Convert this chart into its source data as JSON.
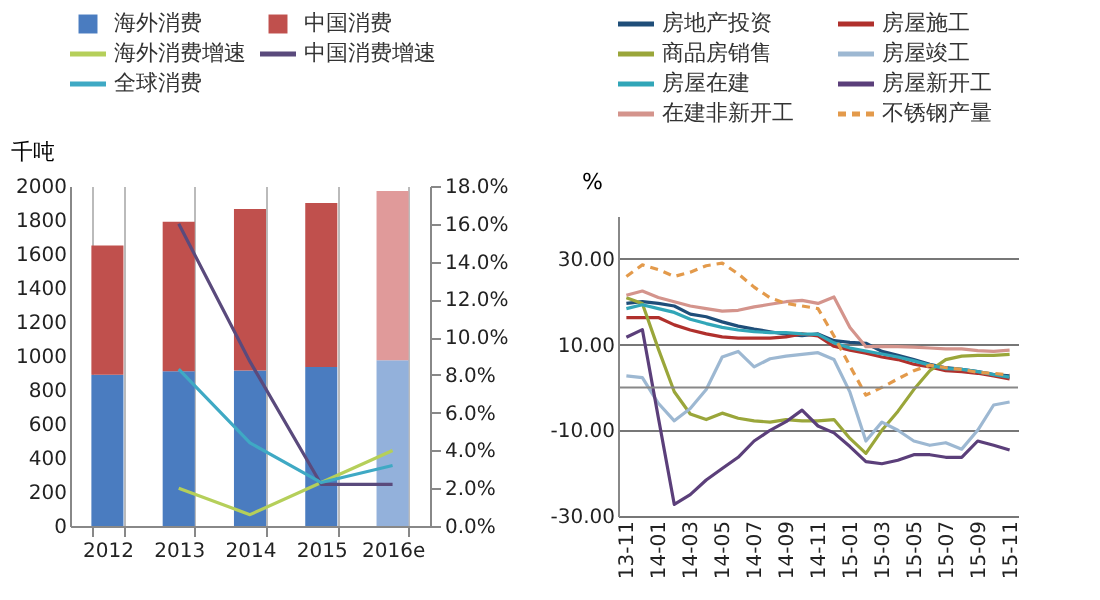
{
  "chart_data": [
    {
      "type": "bar",
      "stacked": true,
      "ylabel": "千吨",
      "categories": [
        "2012",
        "2013",
        "2014",
        "2015",
        "2016e"
      ],
      "ylim": [
        0,
        2000
      ],
      "yticks": [
        0,
        200,
        400,
        600,
        800,
        1000,
        1200,
        1400,
        1600,
        1800,
        2000
      ],
      "y2lim": [
        0,
        18
      ],
      "y2ticks": [
        {
          "value": 0,
          "label": "0.0%"
        },
        {
          "value": 2,
          "label": "2.0%"
        },
        {
          "value": 4,
          "label": "4.0%"
        },
        {
          "value": 6,
          "label": "6.0%"
        },
        {
          "value": 8,
          "label": "8.0%"
        },
        {
          "value": 10,
          "label": "10.0%"
        },
        {
          "value": 12,
          "label": "12.0%"
        },
        {
          "value": 14,
          "label": "14.0%"
        },
        {
          "value": 16,
          "label": "16.0%"
        },
        {
          "value": 18,
          "label": "18.0%"
        }
      ],
      "legend": "top",
      "grid": "x",
      "marker": "none",
      "series": [
        {
          "name": "海外消费",
          "color": "#4a7cc0",
          "colors": [
            "#4a7cc0",
            "#4a7cc0",
            "#4a7cc0",
            "#4a7cc0",
            "#93b1db"
          ],
          "values": [
            890,
            910,
            915,
            935,
            975
          ]
        },
        {
          "name": "中国消费",
          "color": "#c0504d",
          "colors": [
            "#c0504d",
            "#c0504d",
            "#c0504d",
            "#c0504d",
            "#e09a9a"
          ],
          "values": [
            760,
            880,
            950,
            965,
            995
          ]
        },
        {
          "name": "海外消费增速",
          "type": "line",
          "axis": "y2",
          "color": "#b5cf5a",
          "values": [
            null,
            2.0,
            0.6,
            2.3,
            4.0
          ]
        },
        {
          "name": "中国消费增速",
          "type": "line",
          "axis": "y2",
          "color": "#5a4a7c",
          "values": [
            null,
            16.0,
            8.7,
            2.2,
            2.2
          ]
        },
        {
          "name": "全球消费",
          "type": "line",
          "axis": "y2",
          "color": "#3fa9c4",
          "values": [
            null,
            8.3,
            4.4,
            2.3,
            3.2
          ]
        }
      ]
    },
    {
      "type": "line",
      "ylabel": "%",
      "categories": [
        "13-11",
        null,
        "14-01",
        null,
        "14-03",
        null,
        "14-05",
        null,
        "14-07",
        null,
        "14-09",
        null,
        "14-11",
        null,
        "15-01",
        null,
        "15-03",
        null,
        "15-05",
        null,
        "15-07",
        null,
        "15-09",
        null,
        "15-11"
      ],
      "ylim": [
        -30,
        40
      ],
      "yticks": [
        {
          "value": -30,
          "label": "-30.00"
        },
        {
          "value": -10,
          "label": "-10.00"
        },
        {
          "value": 10,
          "label": "10.00"
        },
        {
          "value": 30,
          "label": "30.00"
        }
      ],
      "legend": "top",
      "grid": "y",
      "marker": "none",
      "series": [
        {
          "name": "房地产投资",
          "color": "#1f4e79",
          "values": [
            19.6,
            20,
            19.6,
            19,
            17.1,
            16.5,
            15.3,
            14.3,
            13.6,
            13,
            12.4,
            12.1,
            12.5,
            10.9,
            10.5,
            10.3,
            8.4,
            7.5,
            6.5,
            5.4,
            4.6,
            4.2,
            3.7,
            3.0,
            2.7
          ]
        },
        {
          "name": "房屋施工",
          "color": "#b0302c",
          "values": [
            16.3,
            16.3,
            16.3,
            14.6,
            13.4,
            12.5,
            11.8,
            11.5,
            11.5,
            11.5,
            11.8,
            12.5,
            12,
            9.6,
            8.7,
            8,
            7.1,
            6.5,
            5.4,
            4.8,
            3.9,
            3.7,
            3.3,
            2.7,
            2
          ]
        },
        {
          "name": "商品房销售",
          "color": "#9aa63a",
          "values": [
            20.9,
            19.6,
            9,
            -1,
            -6.2,
            -7.5,
            -6,
            -7.2,
            -7.8,
            -8.1,
            -7.5,
            -7.8,
            -7.8,
            -7.5,
            -11.9,
            -15.4,
            -10,
            -5.6,
            -0.5,
            3.9,
            6.5,
            7.3,
            7.5,
            7.5,
            7.7
          ]
        },
        {
          "name": "房屋竣工",
          "color": "#9db8d2",
          "values": [
            2.7,
            2.3,
            -3.7,
            -7.8,
            -4.9,
            -0.5,
            7.1,
            8.4,
            4.8,
            6.7,
            7.3,
            7.7,
            8.1,
            6.5,
            -1.1,
            -12.5,
            -8.1,
            -10,
            -12.5,
            -13.5,
            -12.9,
            -14.4,
            -10,
            -4.1,
            -3.4
          ]
        },
        {
          "name": "房屋在建",
          "color": "#31a6b8",
          "values": [
            18.4,
            19.3,
            18.4,
            17.5,
            15.9,
            14.9,
            14,
            13.4,
            13,
            12.8,
            12.8,
            12.5,
            12.4,
            10.4,
            9.2,
            8.5,
            7.8,
            7.1,
            6.2,
            5.2,
            4.4,
            4.2,
            3.7,
            3.0,
            2.4
          ]
        },
        {
          "name": "房屋新开工",
          "color": "#5b3f7a",
          "values": [
            11.7,
            13.5,
            -7,
            -27.3,
            -25,
            -21.6,
            -18.9,
            -16.3,
            -12.5,
            -10,
            -8,
            -5.3,
            -9,
            -10.6,
            -13.8,
            -17.3,
            -17.8,
            -17,
            -15.7,
            -15.7,
            -16.3,
            -16.3,
            -12.5,
            -13.5,
            -14.6
          ]
        },
        {
          "name": "在建非新开工",
          "color": "#d4948c",
          "values": [
            21.5,
            22.5,
            21,
            20,
            19,
            18.4,
            17.8,
            18,
            18.8,
            19.4,
            20,
            20.3,
            19.6,
            21.1,
            14,
            9.5,
            9.6,
            9.5,
            9.4,
            9.2,
            9,
            9,
            8.6,
            8.4,
            8.7
          ]
        },
        {
          "name": "不锈钢产量",
          "color": "#e39a4b",
          "line_style": "dashed",
          "values": [
            25.9,
            28.6,
            27.5,
            25.9,
            26.9,
            28.4,
            29,
            26.5,
            23.4,
            20.9,
            19.6,
            19,
            18.4,
            12,
            5,
            -1.8,
            0,
            2,
            3.9,
            5.2,
            4.6,
            4.2,
            3.5,
            3.3,
            2.9
          ]
        }
      ]
    }
  ]
}
